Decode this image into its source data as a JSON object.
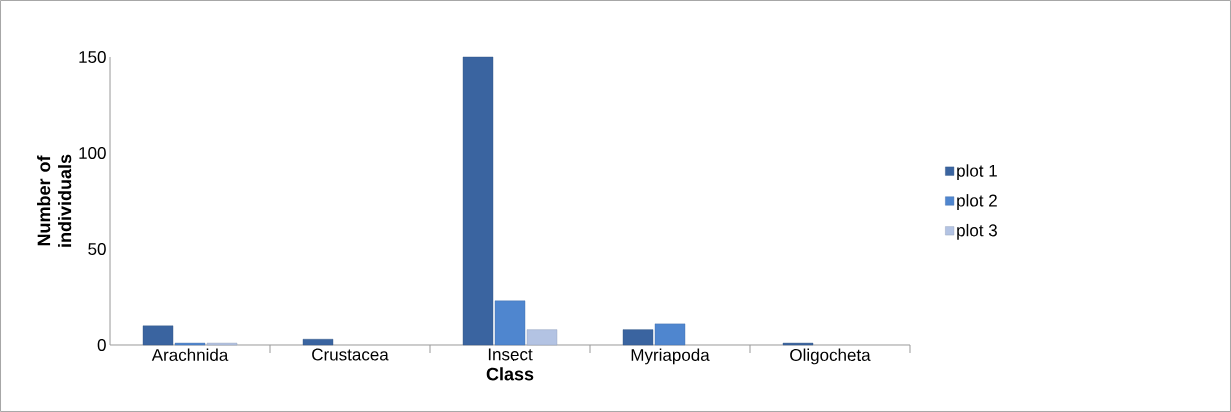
{
  "chart_data": {
    "type": "bar",
    "xlabel": "Class",
    "ylabel": "Number of individuals",
    "categories": [
      "Arachnida",
      "Crustacea",
      "Insect",
      "Myriapoda",
      "Oligocheta"
    ],
    "series": [
      {
        "name": "plot 1",
        "color": "#3a64a0",
        "values": [
          10,
          3,
          150,
          8,
          1
        ]
      },
      {
        "name": "plot 2",
        "color": "#4f86cf",
        "values": [
          1,
          null,
          23,
          11,
          null
        ]
      },
      {
        "name": "plot 3",
        "color": "#b3c3e3",
        "values": [
          1,
          null,
          8,
          null,
          null
        ]
      }
    ],
    "ylim": [
      0,
      150
    ],
    "yticks": [
      0,
      50,
      100,
      150
    ],
    "legend": "right",
    "grid": false
  }
}
